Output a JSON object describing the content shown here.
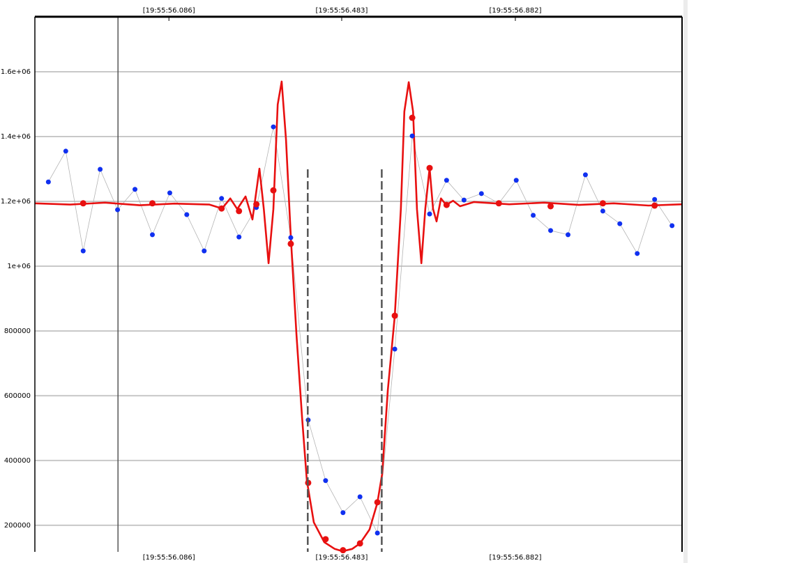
{
  "chart_data": {
    "type": "line",
    "xlim": [
      55.778,
      57.265
    ],
    "ylim": [
      118000,
      1770000
    ],
    "xticks": [
      {
        "value": 56.086,
        "label": "[19:55:56.086]"
      },
      {
        "value": 56.483,
        "label": "[19:55:56.483]"
      },
      {
        "value": 56.882,
        "label": "[19:55:56.882]"
      }
    ],
    "yticks": [
      200000,
      400000,
      600000,
      800000,
      {
        "value": 1000000,
        "label": "1e+06"
      },
      {
        "value": 1200000,
        "label": "1.2e+06"
      },
      {
        "value": 1400000,
        "label": "1.4e+06"
      },
      {
        "value": 1600000,
        "label": "1.6e+06"
      }
    ],
    "grid": true,
    "cursor_x": 55.969,
    "dashed_x": [
      56.405,
      56.575
    ],
    "dashed_top": 1299000,
    "series": [
      {
        "color": "#1030f0",
        "line_color": "#b4b4b4",
        "line": true,
        "marker": true,
        "x": [
          55.809,
          55.849,
          55.889,
          55.928,
          55.968,
          56.008,
          56.048,
          56.088,
          56.127,
          56.167,
          56.207,
          56.247,
          56.287,
          56.326,
          56.366,
          56.406,
          56.446,
          56.486,
          56.525,
          56.565,
          56.605,
          56.645,
          56.685,
          56.724,
          56.764,
          56.804,
          56.844,
          56.884,
          56.923,
          56.963,
          57.003,
          57.043,
          57.083,
          57.122,
          57.162,
          57.202,
          57.242
        ],
        "values": [
          1260000,
          1355000,
          1047000,
          1299000,
          1174000,
          1237000,
          1097000,
          1226000,
          1159000,
          1047000,
          1209000,
          1090000,
          1181000,
          1430000,
          1088000,
          525000,
          338000,
          239000,
          288000,
          176000,
          744000,
          1402000,
          1161000,
          1265000,
          1204000,
          1224000,
          1194000,
          1265000,
          1157000,
          1110000,
          1097000,
          1282000,
          1170000,
          1131000,
          1039000,
          1206000,
          1125000
        ]
      },
      {
        "color": "#e81010",
        "line_color": "#e81010",
        "line": true,
        "marker": false,
        "x": [
          55.778,
          55.859,
          55.939,
          56.019,
          56.099,
          56.179,
          56.208,
          56.227,
          56.243,
          56.262,
          56.278,
          56.294,
          56.304,
          56.315,
          56.326,
          56.336,
          56.345,
          56.355,
          56.366,
          56.379,
          56.392,
          56.403,
          56.419,
          56.443,
          56.467,
          56.485,
          56.507,
          56.525,
          56.547,
          56.565,
          56.576,
          56.589,
          56.605,
          56.619,
          56.627,
          56.637,
          56.647,
          56.656,
          56.666,
          56.675,
          56.685,
          56.693,
          56.701,
          56.711,
          56.723,
          56.739,
          56.755,
          56.787,
          56.868,
          56.948,
          57.028,
          57.108,
          57.188,
          57.265
        ],
        "values": [
          1194000,
          1190000,
          1196000,
          1188000,
          1193000,
          1190000,
          1178000,
          1209000,
          1176000,
          1215000,
          1144000,
          1301000,
          1176000,
          1009000,
          1176000,
          1499000,
          1570000,
          1391000,
          1090000,
          789000,
          531000,
          338000,
          209000,
          148000,
          127000,
          120000,
          127000,
          144000,
          187000,
          269000,
          359000,
          617000,
          847000,
          1176000,
          1477000,
          1568000,
          1477000,
          1176000,
          1009000,
          1176000,
          1303000,
          1176000,
          1138000,
          1209000,
          1189000,
          1202000,
          1185000,
          1198000,
          1191000,
          1196000,
          1189000,
          1194000,
          1187000,
          1191000
        ]
      },
      {
        "color": "#e81010",
        "line": false,
        "marker": true,
        "x": [
          55.889,
          56.048,
          56.207,
          56.247,
          56.287,
          56.326,
          56.366,
          56.406,
          56.446,
          56.486,
          56.525,
          56.565,
          56.605,
          56.645,
          56.685,
          56.724,
          56.844,
          56.963,
          57.083,
          57.202
        ],
        "values": [
          1194000,
          1194000,
          1178000,
          1170000,
          1191000,
          1234000,
          1069000,
          331000,
          157000,
          123000,
          144000,
          271000,
          847000,
          1458000,
          1303000,
          1189000,
          1194000,
          1185000,
          1194000,
          1187000
        ]
      }
    ]
  }
}
